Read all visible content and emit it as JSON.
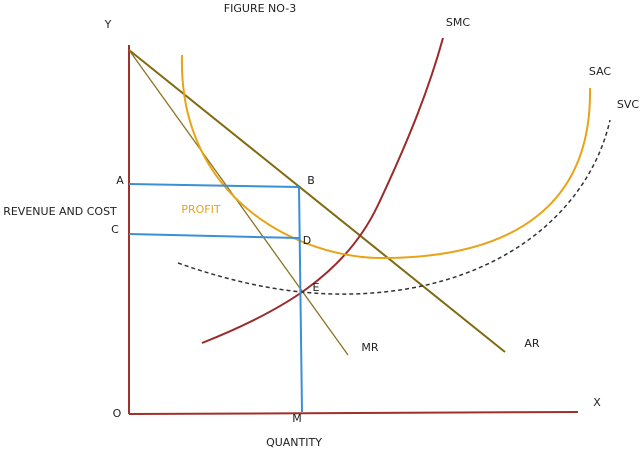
{
  "title": "FIGURE NO-3",
  "axes": {
    "y": "Y",
    "x": "X",
    "origin": "O",
    "y_title": "REVENUE AND COST",
    "x_title": "QUANTITY"
  },
  "points": [
    "A",
    "B",
    "C",
    "D",
    "E",
    "M"
  ],
  "curves": [
    "SMC",
    "SAC",
    "SVC",
    "MR",
    "AR"
  ],
  "region": "PROFIT"
}
